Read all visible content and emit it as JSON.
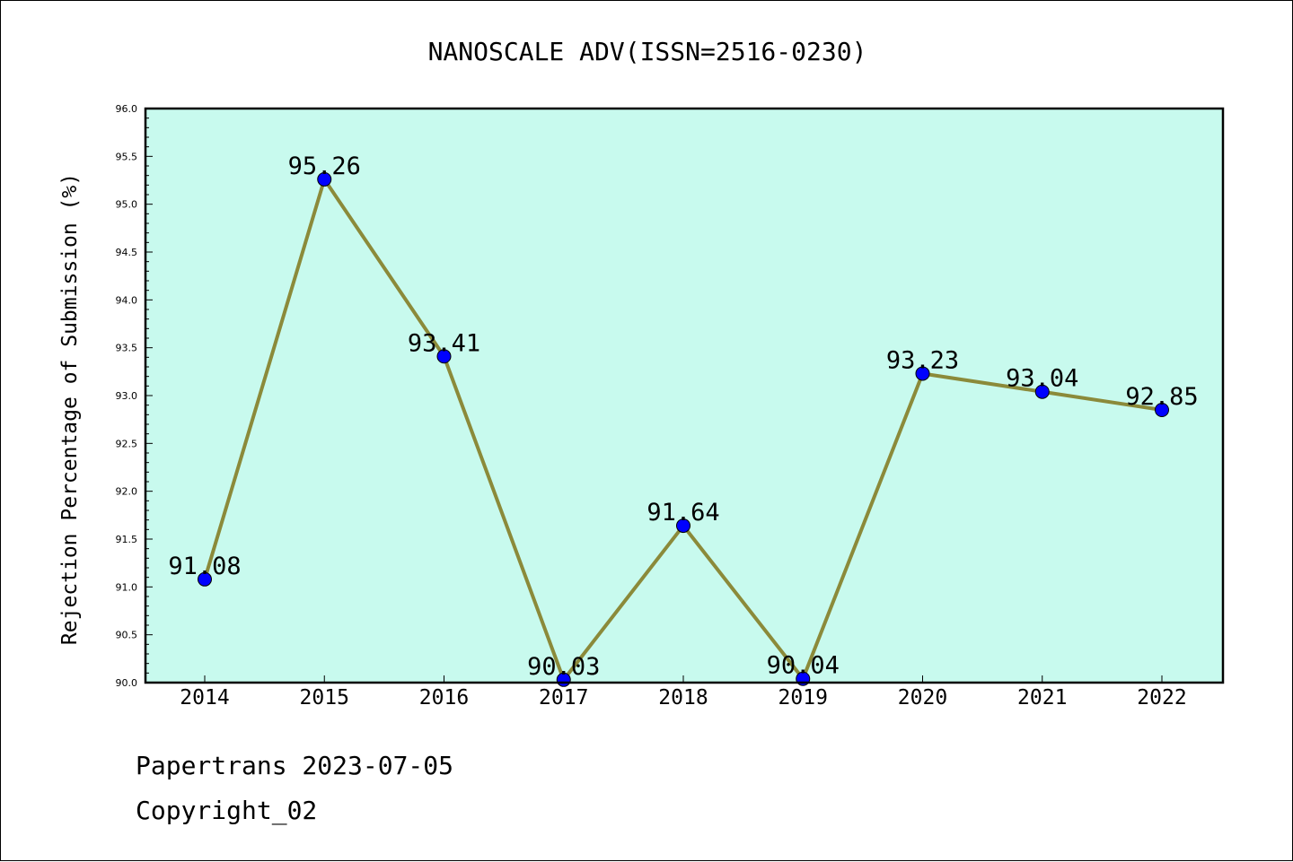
{
  "chart_data": {
    "type": "line",
    "title": "NANOSCALE ADV(ISSN=2516-0230)",
    "xlabel": "",
    "ylabel": "Rejection Percentage of Submission (%)",
    "categories": [
      "2014",
      "2015",
      "2016",
      "2017",
      "2018",
      "2019",
      "2020",
      "2021",
      "2022"
    ],
    "series": [
      {
        "values": [
          91.08,
          95.26,
          93.41,
          90.03,
          91.64,
          90.04,
          93.23,
          93.04,
          92.85
        ],
        "labels": [
          "91.08",
          "95.26",
          "93.41",
          "90.03",
          "91.64",
          "90.04",
          "93.23",
          "93.04",
          "92.85"
        ]
      }
    ],
    "ylim": [
      90.0,
      96.0
    ],
    "yticks": [
      "90.0",
      "90.5",
      "91.0",
      "91.5",
      "92.0",
      "92.5",
      "93.0",
      "93.5",
      "94.0",
      "94.5",
      "95.0",
      "95.5",
      "96.0"
    ],
    "yminor_step": 0.1,
    "grid": false,
    "colors": {
      "plot_background": "#c8faee",
      "line": "#8b8a3a",
      "marker": "#0000ff"
    }
  },
  "footer": {
    "line1": "Papertrans 2023-07-05",
    "line2": "Copyright_02"
  }
}
